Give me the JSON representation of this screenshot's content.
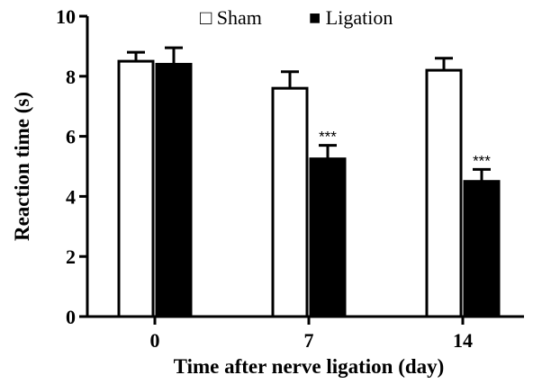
{
  "chart_data": {
    "type": "bar",
    "categories": [
      "0",
      "7",
      "14"
    ],
    "series": [
      {
        "name": "Sham",
        "values": [
          8.5,
          7.6,
          8.2
        ],
        "errors": [
          0.3,
          0.55,
          0.4
        ],
        "fill": "#ffffff",
        "legend_symbol": "□"
      },
      {
        "name": "Ligation",
        "values": [
          8.4,
          5.25,
          4.5
        ],
        "errors": [
          0.55,
          0.45,
          0.4
        ],
        "fill": "#000000",
        "legend_symbol": "■"
      }
    ],
    "annotations": [
      {
        "category": "7",
        "series": "Ligation",
        "text": "***"
      },
      {
        "category": "14",
        "series": "Ligation",
        "text": "***"
      }
    ],
    "xlabel": "Time after nerve ligation (day)",
    "ylabel": "Reaction time (s)",
    "ylim": [
      0,
      10
    ],
    "yticks": [
      "0",
      "2",
      "4",
      "6",
      "8",
      "10"
    ],
    "grid": false,
    "legend_position": "top-center"
  }
}
